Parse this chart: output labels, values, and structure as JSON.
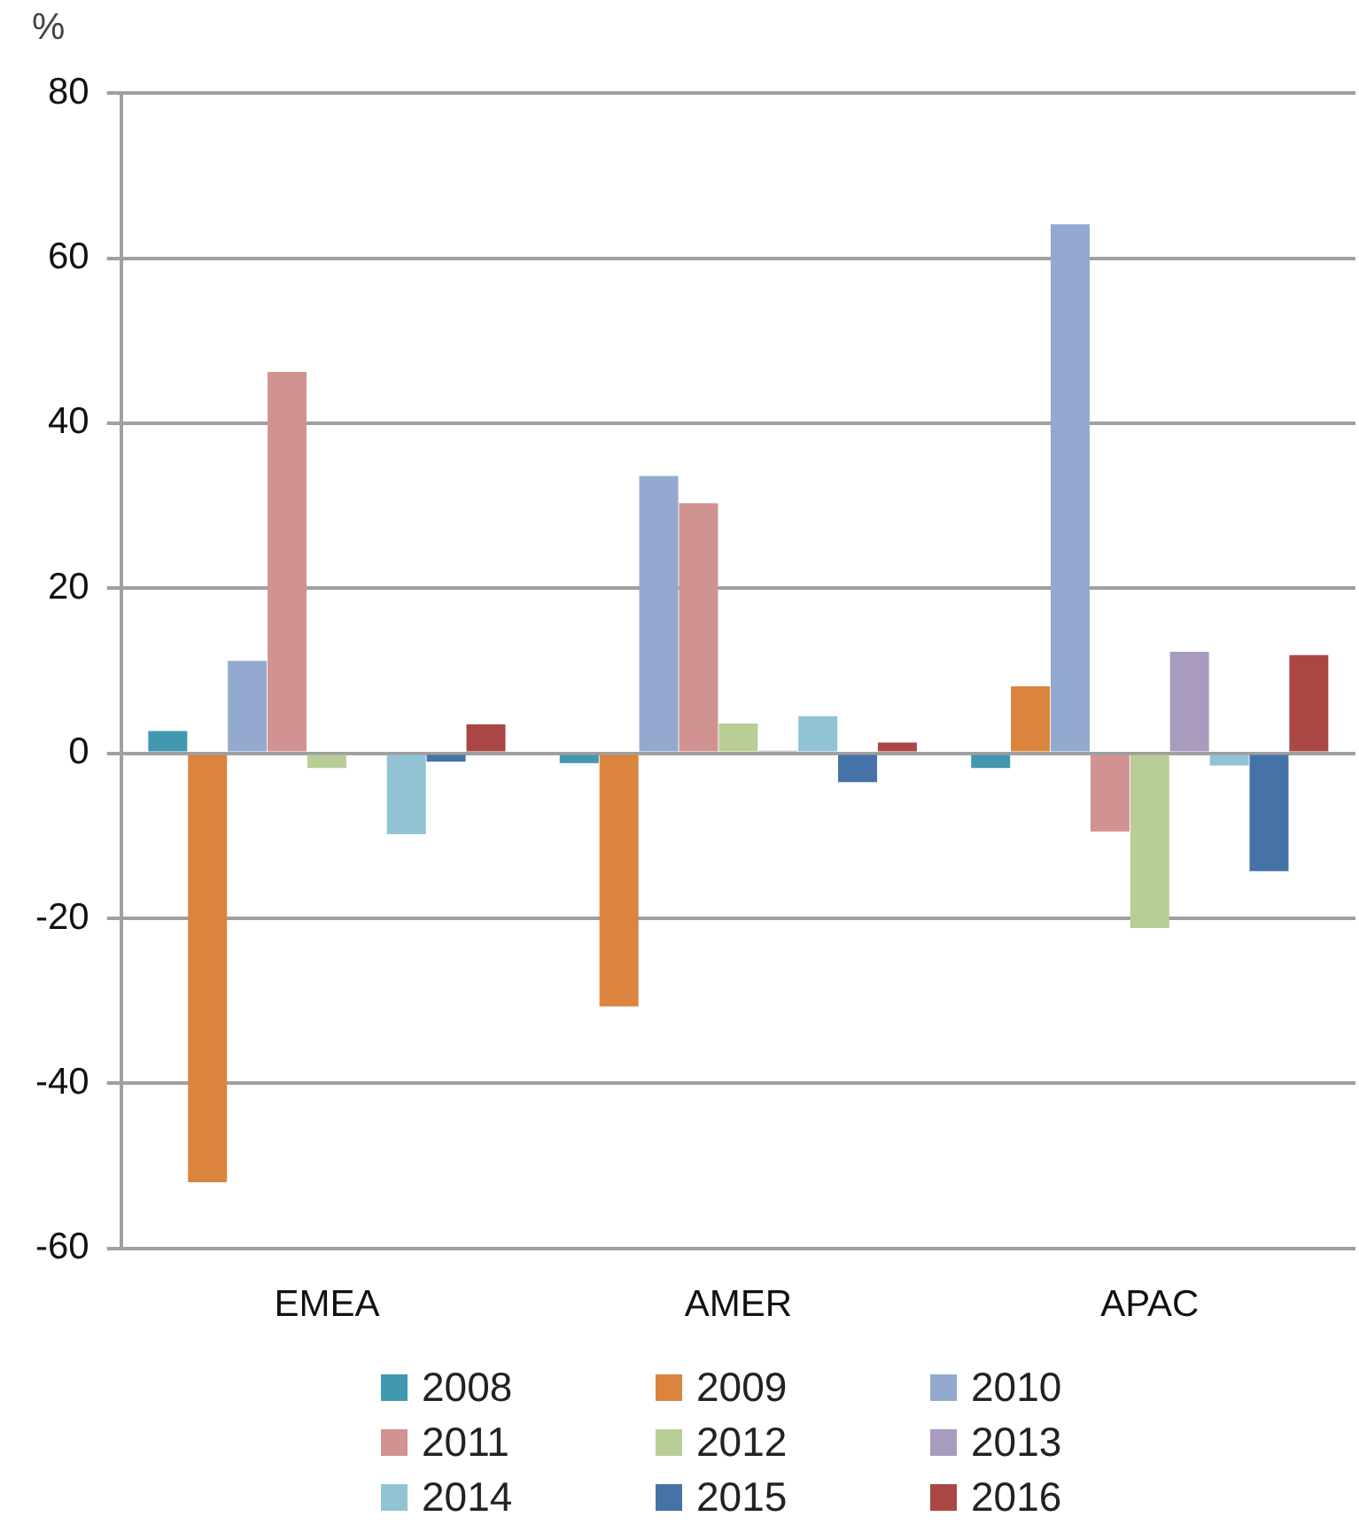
{
  "chart_data": {
    "type": "bar",
    "ylabel": "%",
    "categories": [
      "EMEA",
      "AMER",
      "APAC"
    ],
    "series": [
      {
        "name": "2008",
        "color": "#4198af",
        "values": [
          2.7,
          -1.2,
          -1.8
        ]
      },
      {
        "name": "2009",
        "color": "#db843d",
        "values": [
          -52,
          -30.7,
          8.1
        ]
      },
      {
        "name": "2010",
        "color": "#93a9cf",
        "values": [
          11.2,
          33.6,
          64.1
        ]
      },
      {
        "name": "2011",
        "color": "#d19392",
        "values": [
          46.2,
          30.3,
          -9.5
        ]
      },
      {
        "name": "2012",
        "color": "#b9cd96",
        "values": [
          -1.8,
          3.6,
          -21.2
        ]
      },
      {
        "name": "2013",
        "color": "#a99bbd",
        "values": [
          0,
          0.3,
          12.3
        ]
      },
      {
        "name": "2014",
        "color": "#91c3d5",
        "values": [
          -9.8,
          4.5,
          -1.5
        ]
      },
      {
        "name": "2015",
        "color": "#4572a7",
        "values": [
          -1,
          -3.5,
          -14.3
        ]
      },
      {
        "name": "2016",
        "color": "#aa4643",
        "values": [
          3.5,
          1.3,
          11.9
        ]
      }
    ],
    "ylim": [
      -60,
      80
    ],
    "yticks": [
      -60,
      -40,
      -20,
      0,
      20,
      40,
      60,
      80
    ],
    "grid": "y",
    "legend": "bottom"
  }
}
